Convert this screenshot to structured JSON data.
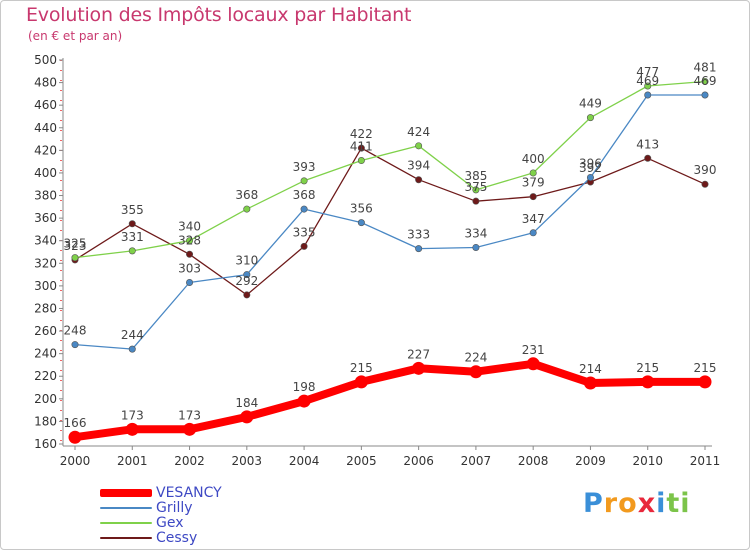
{
  "chart_data": {
    "type": "line",
    "title": "Evolution des Impôts locaux par Habitant",
    "subtitle": "(en € et par an)",
    "xlabel": "",
    "ylabel": "",
    "x": [
      "2000",
      "2001",
      "2002",
      "2003",
      "2004",
      "2005",
      "2006",
      "2007",
      "2008",
      "2009",
      "2010",
      "2011"
    ],
    "ylim": [
      160,
      500
    ],
    "yticks": [
      160,
      180,
      200,
      220,
      240,
      260,
      280,
      300,
      320,
      340,
      360,
      380,
      400,
      420,
      440,
      460,
      480,
      500
    ],
    "grid": false,
    "legend_position": "bottom-left",
    "series": [
      {
        "name": "VESANCY",
        "color": "#ff0000",
        "values": [
          166,
          173,
          173,
          184,
          198,
          215,
          227,
          224,
          231,
          214,
          215,
          215
        ]
      },
      {
        "name": "Grilly",
        "color": "#4a88c4",
        "values": [
          248,
          244,
          303,
          310,
          368,
          356,
          333,
          334,
          347,
          396,
          469,
          469
        ]
      },
      {
        "name": "Gex",
        "color": "#7fd14a",
        "values": [
          325,
          331,
          340,
          368,
          393,
          411,
          424,
          385,
          400,
          449,
          477,
          481
        ]
      },
      {
        "name": "Cessy",
        "color": "#6e1a1a",
        "values": [
          323,
          355,
          328,
          292,
          335,
          422,
          394,
          375,
          379,
          392,
          413,
          390
        ]
      }
    ],
    "data_labels": [
      {
        "series": "VESANCY",
        "labels": [
          "166",
          "173",
          "173",
          "184",
          "198",
          "215",
          "227",
          "224",
          "231",
          "214",
          "215",
          "215"
        ]
      },
      {
        "series": "Grilly",
        "labels": [
          "248",
          "244",
          "303",
          "310",
          "368",
          "356",
          "333",
          "334",
          "347",
          "396",
          "469",
          "469"
        ]
      },
      {
        "series": "Gex",
        "labels": [
          "325",
          "331",
          "340",
          "368",
          "393",
          "411",
          "424",
          "385",
          "400",
          "449",
          "477",
          "481"
        ]
      },
      {
        "series": "Cessy",
        "labels": [
          "323",
          "355",
          "328",
          "292",
          "335",
          "422",
          "394",
          "375",
          "379",
          "392",
          "413",
          "390"
        ]
      }
    ]
  },
  "logo": {
    "text": "Proxiti",
    "letters": [
      {
        "ch": "P",
        "color": "#3a8fd8"
      },
      {
        "ch": "r",
        "color": "#f29a1e"
      },
      {
        "ch": "o",
        "color": "#f29a1e"
      },
      {
        "ch": "x",
        "color": "#e8283c"
      },
      {
        "ch": "i",
        "color": "#3a8fd8"
      },
      {
        "ch": "t",
        "color": "#7cc44a"
      },
      {
        "ch": "i",
        "color": "#7cc44a"
      }
    ]
  }
}
